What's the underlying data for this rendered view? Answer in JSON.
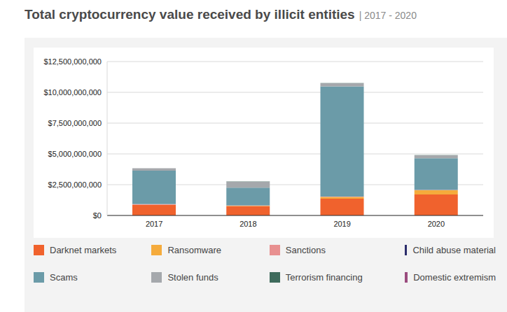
{
  "chart_data": {
    "type": "bar",
    "title": "Total cryptocurrency value received by illicit entities",
    "subtitle": "| 2017 - 2020",
    "categories": [
      "2017",
      "2018",
      "2019",
      "2020"
    ],
    "stacked": true,
    "grid": true,
    "legend": "bottom",
    "ylim": [
      0,
      12500000000
    ],
    "yticks": [
      {
        "value": 0,
        "label": "$0"
      },
      {
        "value": 2500000000,
        "label": "$2,500,000,000"
      },
      {
        "value": 5000000000,
        "label": "$5,000,000,000"
      },
      {
        "value": 7500000000,
        "label": "$7,500,000,000"
      },
      {
        "value": 10000000000,
        "label": "$10,000,000,000"
      },
      {
        "value": 12500000000,
        "label": "$12,500,000,000"
      }
    ],
    "series": [
      {
        "name": "Darknet markets",
        "color": "#f0622d",
        "values": [
          850000000,
          740000000,
          1360000000,
          1700000000
        ]
      },
      {
        "name": "Ransomware",
        "color": "#f5ab3c",
        "values": [
          20000000,
          40000000,
          150000000,
          350000000
        ]
      },
      {
        "name": "Sanctions",
        "color": "#e89090",
        "values": [
          50000000,
          30000000,
          20000000,
          20000000
        ]
      },
      {
        "name": "Child abuse material",
        "color": "#2b2d6b",
        "values": [
          10000000,
          10000000,
          10000000,
          10000000
        ]
      },
      {
        "name": "Scams",
        "color": "#6b9ba8",
        "values": [
          2700000000,
          1440000000,
          8950000000,
          2560000000
        ]
      },
      {
        "name": "Stolen funds",
        "color": "#a5a8ac",
        "values": [
          200000000,
          500000000,
          250000000,
          250000000
        ]
      },
      {
        "name": "Terrorism financing",
        "color": "#3e6b5c",
        "values": [
          10000000,
          10000000,
          10000000,
          10000000
        ]
      },
      {
        "name": "Domestic extremism",
        "color": "#9a4b7e",
        "values": [
          0,
          0,
          0,
          0
        ]
      }
    ]
  }
}
